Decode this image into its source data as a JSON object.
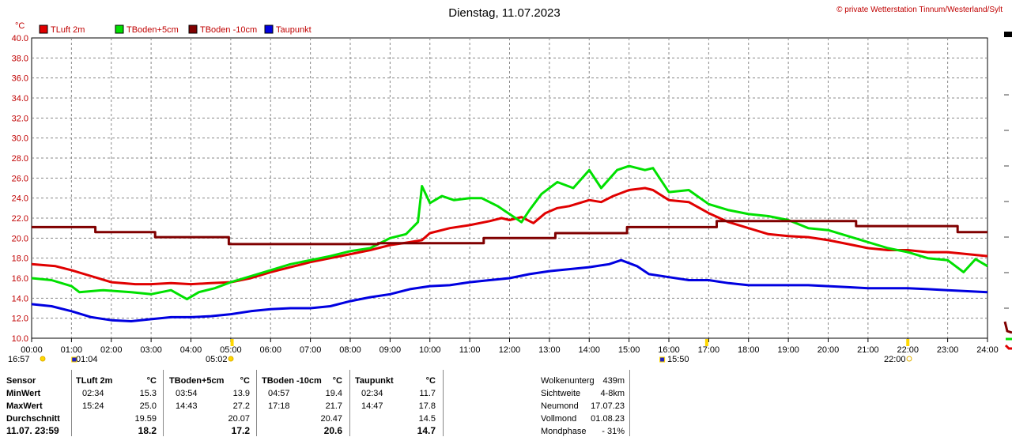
{
  "title": "Dienstag, 11.07.2023",
  "copyright": "© private Wetterstation Tinnum/Westerland/Sylt",
  "chart_data": {
    "type": "line",
    "title": "Dienstag, 11.07.2023",
    "ylabel": "°C",
    "xlabel": "",
    "ylim": [
      10,
      40
    ],
    "xlim": [
      0,
      24
    ],
    "grid": true,
    "legend_position": "top-left",
    "y_ticks": [
      "10.0",
      "12.0",
      "14.0",
      "16.0",
      "18.0",
      "20.0",
      "22.0",
      "24.0",
      "26.0",
      "28.0",
      "30.0",
      "32.0",
      "34.0",
      "36.0",
      "38.0",
      "40.0"
    ],
    "x_ticks": [
      "00:00",
      "01:00",
      "02:00",
      "03:00",
      "04:00",
      "05:00",
      "06:00",
      "07:00",
      "08:00",
      "09:00",
      "10:00",
      "11:00",
      "12:00",
      "13:00",
      "14:00",
      "15:00",
      "16:00",
      "17:00",
      "18:00",
      "19:00",
      "20:00",
      "21:00",
      "22:00",
      "23:00",
      "24:00"
    ],
    "series": [
      {
        "name": "TLuft 2m",
        "color": "#e00000",
        "x": [
          0,
          0.6,
          1.0,
          1.5,
          2.0,
          2.6,
          3.0,
          3.5,
          4.0,
          4.5,
          5.0,
          5.5,
          6.0,
          6.5,
          7.0,
          7.5,
          8.0,
          8.5,
          9.0,
          9.5,
          9.8,
          10.0,
          10.5,
          11.0,
          11.5,
          11.8,
          12.0,
          12.3,
          12.6,
          12.9,
          13.2,
          13.5,
          14.0,
          14.3,
          14.6,
          15.0,
          15.4,
          15.6,
          16.0,
          16.5,
          17.0,
          17.5,
          18.0,
          18.5,
          19.0,
          19.5,
          20.0,
          20.5,
          21.0,
          21.5,
          22.0,
          22.5,
          23.0,
          23.5,
          24.0
        ],
        "y": [
          17.4,
          17.2,
          16.8,
          16.2,
          15.6,
          15.4,
          15.4,
          15.5,
          15.4,
          15.5,
          15.6,
          16.0,
          16.6,
          17.1,
          17.6,
          18.0,
          18.4,
          18.8,
          19.3,
          19.6,
          19.8,
          20.5,
          21.0,
          21.3,
          21.7,
          22.0,
          21.8,
          22.1,
          21.5,
          22.5,
          23.0,
          23.2,
          23.8,
          23.6,
          24.2,
          24.8,
          25.0,
          24.8,
          23.8,
          23.6,
          22.5,
          21.6,
          21.0,
          20.4,
          20.2,
          20.1,
          19.8,
          19.4,
          19.0,
          18.8,
          18.8,
          18.6,
          18.6,
          18.4,
          18.2
        ]
      },
      {
        "name": "TBoden+5cm",
        "color": "#00e000",
        "x": [
          0,
          0.5,
          1.0,
          1.2,
          1.8,
          2.5,
          3.0,
          3.5,
          3.9,
          4.2,
          4.6,
          5.0,
          5.5,
          6.0,
          6.5,
          7.0,
          7.5,
          8.0,
          8.5,
          9.0,
          9.4,
          9.7,
          9.8,
          10.0,
          10.3,
          10.6,
          11.0,
          11.3,
          11.7,
          12.0,
          12.3,
          12.5,
          12.8,
          13.2,
          13.6,
          14.0,
          14.3,
          14.7,
          15.0,
          15.4,
          15.6,
          16.0,
          16.5,
          17.0,
          17.5,
          18.0,
          18.5,
          19.0,
          19.5,
          20.0,
          20.5,
          21.0,
          21.5,
          22.0,
          22.5,
          23.0,
          23.4,
          23.7,
          24.0
        ],
        "y": [
          16.0,
          15.8,
          15.2,
          14.6,
          14.8,
          14.6,
          14.4,
          14.8,
          13.9,
          14.6,
          15.0,
          15.6,
          16.2,
          16.8,
          17.4,
          17.8,
          18.2,
          18.7,
          19.0,
          20.0,
          20.4,
          21.6,
          25.2,
          23.5,
          24.2,
          23.8,
          24.0,
          24.0,
          23.2,
          22.4,
          21.6,
          22.8,
          24.4,
          25.6,
          25.0,
          26.8,
          25.0,
          26.8,
          27.2,
          26.8,
          27.0,
          24.6,
          24.8,
          23.4,
          22.8,
          22.4,
          22.2,
          21.8,
          21.0,
          20.8,
          20.2,
          19.6,
          19.0,
          18.6,
          18.0,
          17.8,
          16.6,
          17.9,
          17.2
        ]
      },
      {
        "name": "TBoden -10cm",
        "color": "#800000",
        "x": [
          0,
          1.6,
          1.6,
          3.1,
          3.1,
          4.95,
          4.95,
          8.7,
          8.7,
          11.35,
          11.35,
          13.15,
          13.15,
          14.95,
          14.95,
          17.2,
          17.2,
          20.7,
          20.7,
          23.25,
          23.25,
          24.0
        ],
        "y": [
          21.1,
          21.1,
          20.6,
          20.6,
          20.1,
          20.1,
          19.4,
          19.4,
          19.5,
          19.5,
          20.0,
          20.0,
          20.5,
          20.5,
          21.1,
          21.1,
          21.7,
          21.7,
          21.2,
          21.2,
          20.6,
          20.6
        ]
      },
      {
        "name": "Taupunkt",
        "color": "#0000e0",
        "x": [
          0,
          0.5,
          1.0,
          1.5,
          2.0,
          2.5,
          3.0,
          3.5,
          4.0,
          4.5,
          5.0,
          5.5,
          6.0,
          6.5,
          7.0,
          7.5,
          8.0,
          8.5,
          9.0,
          9.5,
          10.0,
          10.5,
          11.0,
          11.5,
          12.0,
          12.5,
          13.0,
          13.5,
          14.0,
          14.5,
          14.8,
          15.2,
          15.5,
          16.0,
          16.5,
          17.0,
          17.5,
          18.0,
          18.5,
          19.0,
          19.5,
          20.0,
          20.5,
          21.0,
          21.5,
          22.0,
          22.5,
          23.0,
          23.5,
          24.0
        ],
        "y": [
          13.4,
          13.2,
          12.7,
          12.1,
          11.8,
          11.7,
          11.9,
          12.1,
          12.1,
          12.2,
          12.4,
          12.7,
          12.9,
          13.0,
          13.0,
          13.2,
          13.7,
          14.1,
          14.4,
          14.9,
          15.2,
          15.3,
          15.6,
          15.8,
          16.0,
          16.4,
          16.7,
          16.9,
          17.1,
          17.4,
          17.8,
          17.2,
          16.4,
          16.1,
          15.8,
          15.8,
          15.5,
          15.3,
          15.3,
          15.3,
          15.3,
          15.2,
          15.1,
          15.0,
          15.0,
          15.0,
          14.9,
          14.8,
          14.7,
          14.6
        ]
      }
    ],
    "markers": [
      {
        "time": "16:57",
        "kind": "sun"
      },
      {
        "time": "01:04",
        "kind": "moon"
      },
      {
        "time": "05:02",
        "kind": "sun"
      },
      {
        "time": "15:50",
        "kind": "moon"
      },
      {
        "time": "22:00",
        "kind": "sun"
      }
    ]
  },
  "table": {
    "labels": {
      "sensor": "Sensor",
      "min": "MinWert",
      "max": "MaxWert",
      "avg": "Durchschnitt",
      "now": "11.07. 23:59"
    },
    "unit": "°C",
    "columns": [
      {
        "name": "TLuft 2m",
        "min_time": "02:34",
        "min": "15.3",
        "max_time": "15:24",
        "max": "25.0",
        "avg": "19.59",
        "now": "18.2"
      },
      {
        "name": "TBoden+5cm",
        "min_time": "03:54",
        "min": "13.9",
        "max_time": "14:43",
        "max": "27.2",
        "avg": "20.07",
        "now": "17.2"
      },
      {
        "name": "TBoden -10cm",
        "min_time": "04:57",
        "min": "19.4",
        "max_time": "17:18",
        "max": "21.7",
        "avg": "20.47",
        "now": "20.6"
      },
      {
        "name": "Taupunkt",
        "min_time": "02:34",
        "min": "11.7",
        "max_time": "14:47",
        "max": "17.8",
        "avg": "14.5",
        "now": "14.7"
      }
    ],
    "info": [
      {
        "label": "Wolkenunterg",
        "value": "439m"
      },
      {
        "label": "Sichtweite",
        "value": "4-8km"
      },
      {
        "label": "Neumond",
        "value": "17.07.23"
      },
      {
        "label": "Vollmond",
        "value": "01.08.23"
      },
      {
        "label": "Mondphase",
        "value": "- 31%"
      }
    ]
  }
}
